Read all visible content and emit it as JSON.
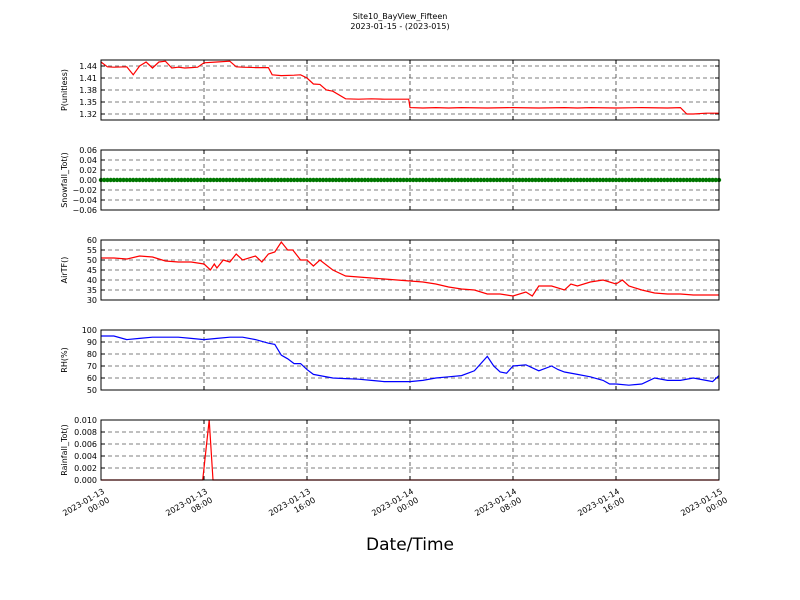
{
  "figure": {
    "title": "Site10_BayView_Fifteen",
    "subtitle": "2023-01-15 - (2023-015)",
    "xlabel": "Date/Time"
  },
  "x_ticks": [
    {
      "line1": "2023-01-13",
      "line2": "00:00"
    },
    {
      "line1": "2023-01-13",
      "line2": "08:00"
    },
    {
      "line1": "2023-01-13",
      "line2": "16:00"
    },
    {
      "line1": "2023-01-14",
      "line2": "00:00"
    },
    {
      "line1": "2023-01-14",
      "line2": "08:00"
    },
    {
      "line1": "2023-01-14",
      "line2": "16:00"
    },
    {
      "line1": "2023-01-15",
      "line2": "00:00"
    }
  ],
  "chart_data": [
    {
      "type": "line",
      "ylabel": "P(unitless)",
      "xlim": [
        "2023-01-13 00:00",
        "2023-01-15 00:00"
      ],
      "ylim": [
        1.305,
        1.455
      ],
      "yticks": [
        "1.32",
        "1.35",
        "1.38",
        "1.41",
        "1.44"
      ],
      "grid": true,
      "color": "#ff0000",
      "series": [
        {
          "x_hours": [
            0,
            0.5,
            1,
            2,
            2.5,
            3,
            3.5,
            4,
            4.5,
            5,
            5.5,
            6,
            6.5,
            7,
            7.5,
            8,
            9,
            10,
            10.5,
            11,
            12,
            13,
            13.3,
            14,
            15,
            15.5,
            16,
            16.5,
            17,
            17.5,
            18,
            19,
            20,
            21,
            22,
            23,
            23.9,
            24,
            25,
            26,
            27,
            28,
            30,
            32,
            34,
            36,
            37,
            38,
            40,
            42,
            44,
            45,
            45.5,
            46,
            47,
            48
          ],
          "values": [
            1.45,
            1.438,
            1.437,
            1.438,
            1.418,
            1.44,
            1.45,
            1.435,
            1.45,
            1.452,
            1.435,
            1.437,
            1.435,
            1.436,
            1.437,
            1.448,
            1.45,
            1.452,
            1.438,
            1.437,
            1.436,
            1.436,
            1.418,
            1.416,
            1.417,
            1.418,
            1.41,
            1.395,
            1.394,
            1.38,
            1.377,
            1.358,
            1.357,
            1.358,
            1.357,
            1.357,
            1.357,
            1.336,
            1.335,
            1.336,
            1.335,
            1.336,
            1.335,
            1.336,
            1.335,
            1.336,
            1.335,
            1.336,
            1.335,
            1.336,
            1.335,
            1.336,
            1.32,
            1.32,
            1.322,
            1.322
          ]
        }
      ]
    },
    {
      "type": "scatter",
      "ylabel": "Snowfall_Tot()",
      "xlim": [
        "2023-01-13 00:00",
        "2023-01-15 00:00"
      ],
      "ylim": [
        -0.06,
        0.06
      ],
      "yticks": [
        "−0.06",
        "−0.04",
        "−0.02",
        "0.00",
        "0.02",
        "0.04",
        "0.06"
      ],
      "grid": true,
      "color": "#007700",
      "series": [
        {
          "x_hours_range": [
            0,
            48
          ],
          "value": 0.0
        }
      ]
    },
    {
      "type": "line",
      "ylabel": "AirTF()",
      "xlim": [
        "2023-01-13 00:00",
        "2023-01-15 00:00"
      ],
      "ylim": [
        30,
        60
      ],
      "yticks": [
        "30",
        "35",
        "40",
        "45",
        "50",
        "55",
        "60"
      ],
      "grid": true,
      "color": "#ff0000",
      "series": [
        {
          "x_hours": [
            0,
            1,
            2,
            3,
            4,
            5,
            6,
            7,
            8,
            8.5,
            8.8,
            9,
            9.5,
            10,
            10.5,
            11,
            12,
            12.5,
            13,
            13.5,
            14,
            14.5,
            14.9,
            15.5,
            16,
            16.5,
            17,
            18,
            19,
            20,
            21,
            22,
            23,
            24,
            25,
            26,
            27,
            28,
            29,
            30,
            31,
            32,
            33,
            33.5,
            34,
            35,
            36,
            36.5,
            37,
            38,
            39,
            40,
            40.5,
            41,
            42,
            43,
            44,
            45,
            46,
            47,
            48
          ],
          "values": [
            51,
            51,
            50.5,
            52,
            51.5,
            49.5,
            49,
            49,
            48,
            45,
            48,
            46,
            50,
            49,
            53,
            50,
            52,
            49,
            53,
            54,
            59,
            55,
            55,
            50,
            50,
            47,
            50,
            45,
            42,
            41.5,
            41,
            40.5,
            40,
            39.5,
            39,
            38,
            36.5,
            35.5,
            35,
            33,
            33,
            32,
            34,
            32,
            37,
            37,
            35,
            38,
            37,
            39,
            40,
            38,
            40,
            37,
            35,
            33.5,
            33,
            33,
            32.5,
            32.5,
            32.5
          ]
        }
      ]
    },
    {
      "type": "line",
      "ylabel": "RH(%)",
      "xlim": [
        "2023-01-13 00:00",
        "2023-01-15 00:00"
      ],
      "ylim": [
        50,
        100
      ],
      "yticks": [
        "50",
        "60",
        "70",
        "80",
        "90",
        "100"
      ],
      "grid": true,
      "color": "#0000ff",
      "series": [
        {
          "x_hours": [
            0,
            1,
            2,
            3,
            4,
            5,
            6,
            7,
            8,
            9,
            10,
            11,
            12,
            13,
            13.5,
            14,
            14.5,
            15,
            15.5,
            16,
            16.5,
            17,
            18,
            19,
            20,
            21,
            22,
            23,
            24,
            25,
            26,
            27,
            28,
            29,
            30,
            30.5,
            31,
            31.5,
            32,
            33,
            34,
            35,
            35.5,
            36,
            37,
            38,
            39,
            39.5,
            40,
            41,
            42,
            43,
            44,
            45,
            46,
            47,
            47.5,
            48
          ],
          "values": [
            95,
            95,
            92,
            93,
            94,
            94,
            94,
            93,
            92,
            93,
            94,
            94,
            92,
            89,
            88,
            79,
            76,
            72,
            72,
            67,
            63,
            62,
            60,
            59.5,
            59,
            58,
            57,
            57,
            57,
            58,
            60,
            61,
            62,
            66,
            78,
            70,
            65,
            64,
            70,
            71,
            66,
            70,
            67,
            65,
            63,
            61,
            58,
            55,
            55,
            54,
            55,
            60,
            58,
            58,
            60,
            58,
            57,
            62
          ]
        }
      ]
    },
    {
      "type": "line",
      "ylabel": "Rainfall_Tot()",
      "xlim": [
        "2023-01-13 00:00",
        "2023-01-15 00:00"
      ],
      "ylim": [
        0,
        0.01
      ],
      "yticks": [
        "0.000",
        "0.002",
        "0.004",
        "0.006",
        "0.008",
        "0.010"
      ],
      "grid": true,
      "color": "#ff0000",
      "series": [
        {
          "x_hours": [
            0,
            7.9,
            8.4,
            8.7,
            48
          ],
          "values": [
            0,
            0,
            0.01,
            0,
            0
          ]
        }
      ]
    }
  ]
}
